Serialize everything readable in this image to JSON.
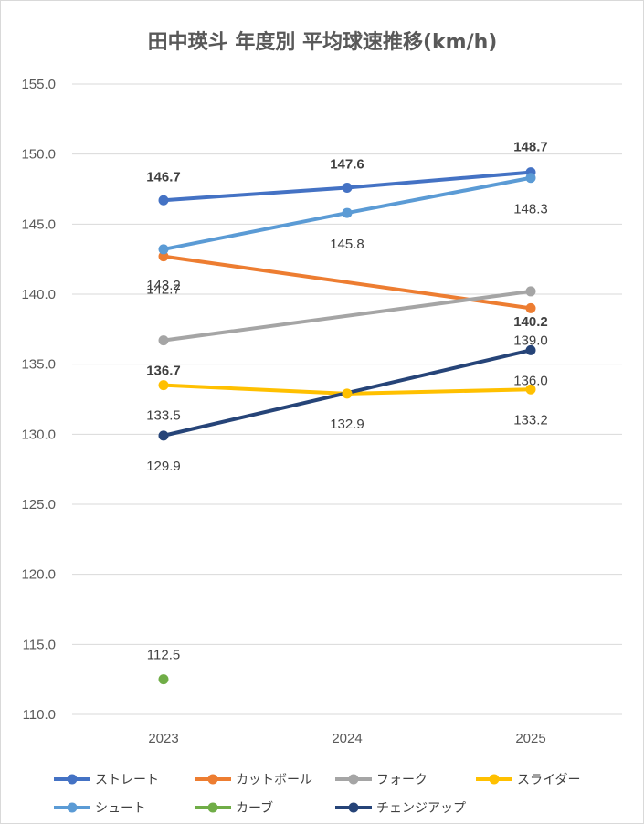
{
  "chart_data": {
    "type": "line",
    "title": "田中瑛斗 年度別 平均球速推移(km/h)",
    "categories": [
      "2023",
      "2024",
      "2025"
    ],
    "ylim": [
      110,
      155
    ],
    "yticks": [
      "110.0",
      "115.0",
      "120.0",
      "125.0",
      "130.0",
      "135.0",
      "140.0",
      "145.0",
      "150.0",
      "155.0"
    ],
    "grid": true,
    "legend_position": "bottom",
    "series": [
      {
        "name": "ストレート",
        "color": "#4472C4",
        "values": [
          146.7,
          147.6,
          148.7
        ],
        "labels": [
          "146.7",
          "147.6",
          "148.7"
        ],
        "label_color": "#4472C4",
        "label_bold": true
      },
      {
        "name": "カットボール",
        "color": "#ED7D31",
        "values": [
          142.7,
          null,
          139.0
        ],
        "labels": [
          "142.7",
          "",
          "139.0"
        ],
        "label_color": "#ED7D31",
        "label_bold": false
      },
      {
        "name": "フォーク",
        "color": "#A5A5A5",
        "values": [
          136.7,
          null,
          140.2
        ],
        "labels": [
          "136.7",
          "",
          "140.2"
        ],
        "label_color": "#262626",
        "label_bold": true
      },
      {
        "name": "スライダー",
        "color": "#FFC000",
        "values": [
          133.5,
          132.9,
          133.2
        ],
        "labels": [
          "133.5",
          "132.9",
          "133.2"
        ],
        "label_color": "#404040",
        "label_bold": false
      },
      {
        "name": "シュート",
        "color": "#5B9BD5",
        "values": [
          143.2,
          145.8,
          148.3
        ],
        "labels": [
          "143.2",
          "145.8",
          "148.3"
        ],
        "label_color": "#404040",
        "label_bold": false
      },
      {
        "name": "カーブ",
        "color": "#70AD47",
        "values": [
          112.5,
          null,
          null
        ],
        "labels": [
          "112.5",
          "",
          ""
        ],
        "label_color": "#404040",
        "label_bold": false
      },
      {
        "name": "チェンジアップ",
        "color": "#264478",
        "values": [
          129.9,
          null,
          136.0
        ],
        "labels": [
          "129.9",
          "",
          "136.0"
        ],
        "label_color": "#404040",
        "label_bold": false
      }
    ]
  }
}
